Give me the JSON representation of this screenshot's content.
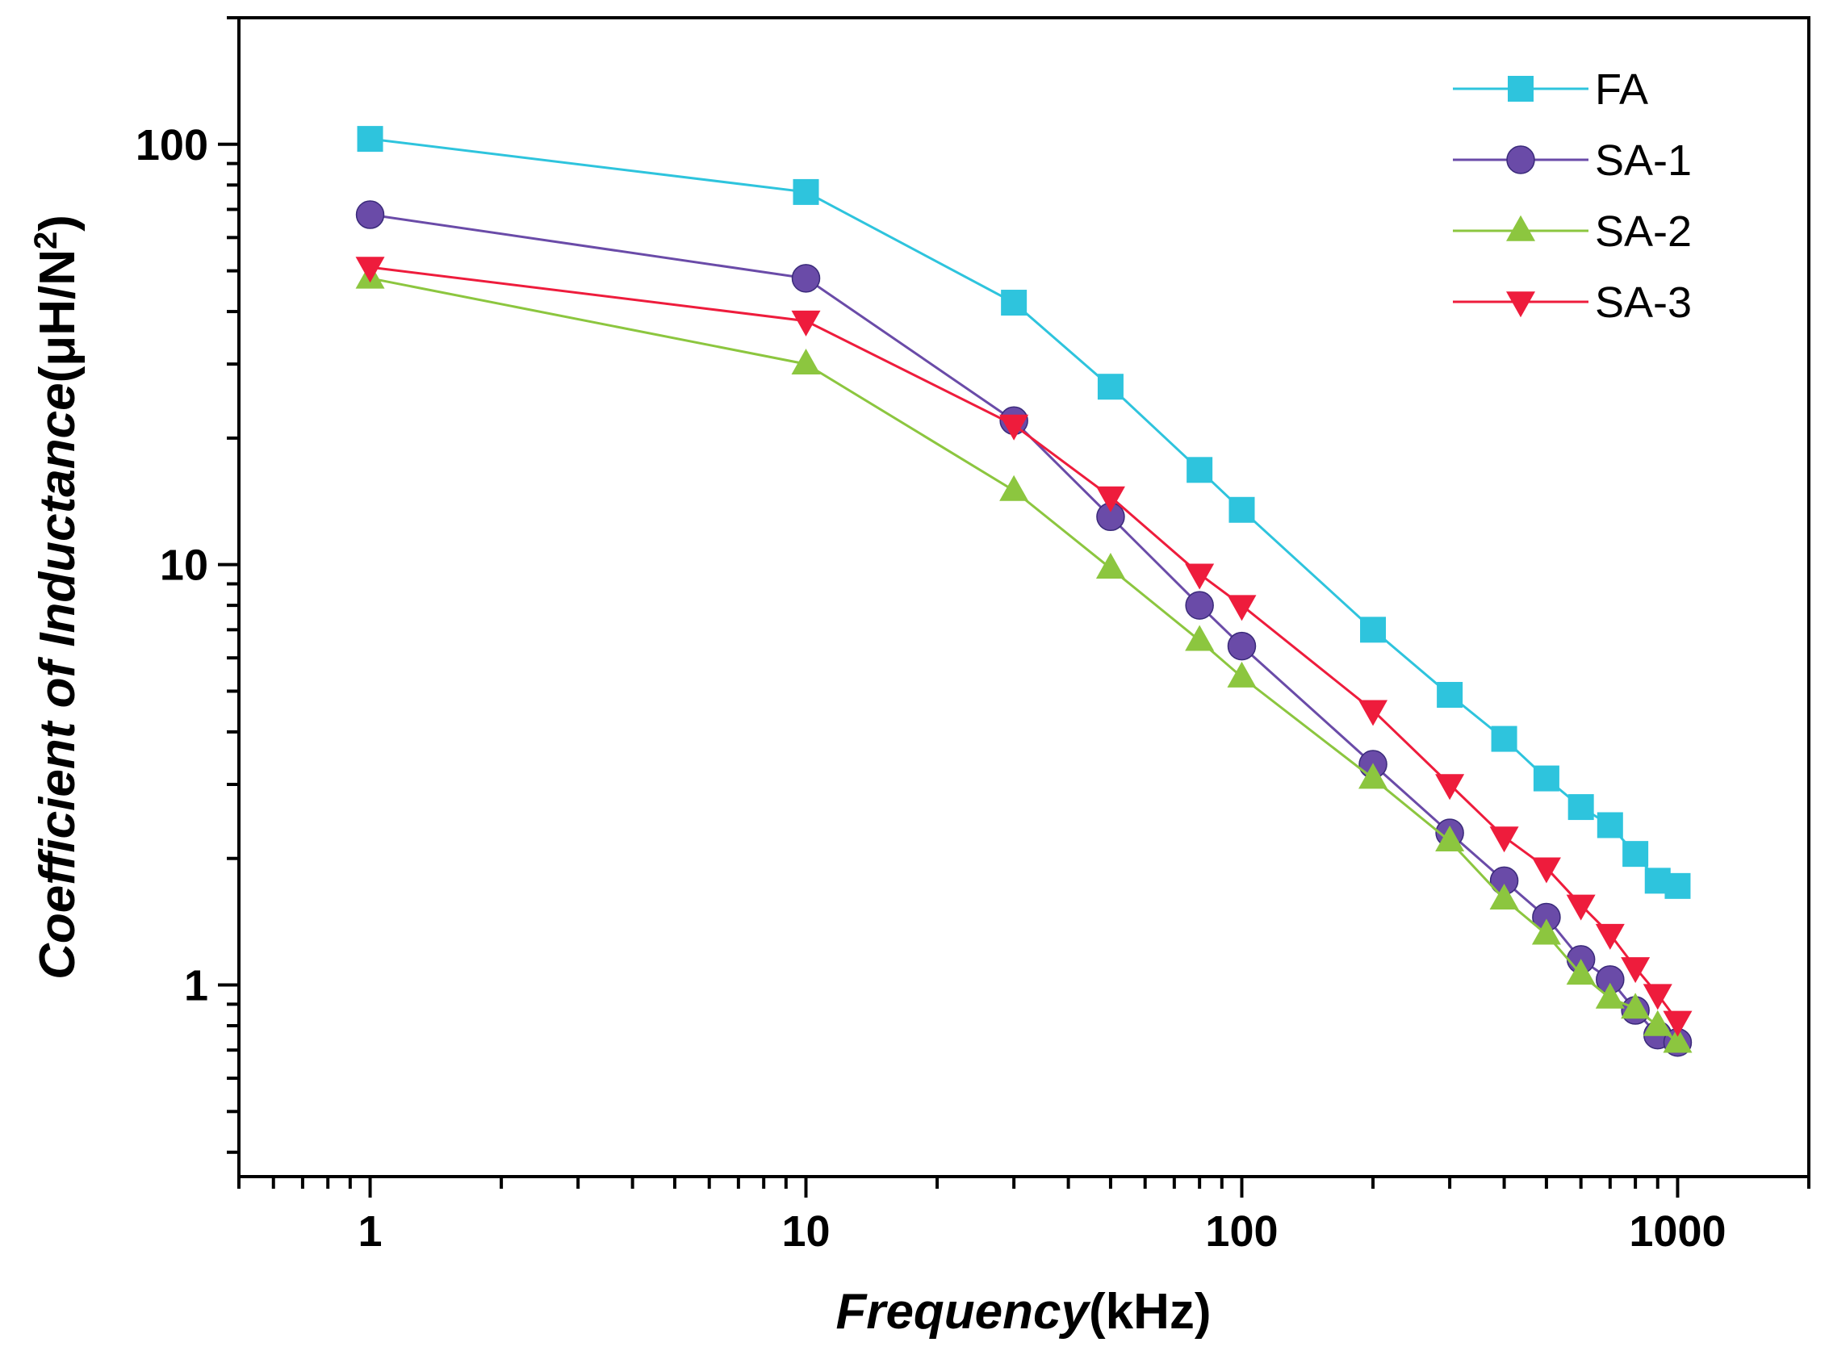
{
  "chart_data": {
    "type": "line",
    "title": "",
    "xlabel": "Frequency(kHz)",
    "xlabel_italic": "Frequency",
    "xlabel_unit": "(kHz)",
    "ylabel": "Coefficient of Inductance(μH/N2)",
    "ylabel_italic": "Coefficient of Inductance",
    "ylabel_unit_prefix": "(μH/N",
    "ylabel_unit_sup": "2",
    "ylabel_unit_suffix": ")",
    "x_scale": "log",
    "y_scale": "log",
    "xlim": [
      0.5,
      2000
    ],
    "ylim": [
      0.35,
      200
    ],
    "x_ticks": [
      1,
      10,
      100,
      1000
    ],
    "x_tick_labels": [
      "1",
      "10",
      "100",
      "1000"
    ],
    "y_ticks": [
      1,
      10,
      100
    ],
    "y_tick_labels": [
      "1",
      "10",
      "100"
    ],
    "grid": false,
    "legend_position": "top-right",
    "x": [
      1,
      10,
      30,
      50,
      80,
      100,
      200,
      300,
      400,
      500,
      600,
      700,
      800,
      900,
      1000
    ],
    "series": [
      {
        "name": "FA",
        "color": "#2ec4dd",
        "marker": "square",
        "x": [
          1,
          10,
          30,
          50,
          80,
          100,
          200,
          300,
          400,
          500,
          600,
          700,
          800,
          900,
          1000
        ],
        "values": [
          103,
          77,
          42,
          26.5,
          16.8,
          13.5,
          7.0,
          4.9,
          3.85,
          3.1,
          2.65,
          2.4,
          2.05,
          1.77,
          1.72
        ]
      },
      {
        "name": "SA-1",
        "color": "#6a4ba8",
        "marker": "circle",
        "x": [
          1,
          10,
          30,
          50,
          80,
          100,
          200,
          300,
          400,
          500,
          600,
          700,
          800,
          900,
          1000
        ],
        "values": [
          68,
          48,
          22,
          13,
          8.0,
          6.4,
          3.35,
          2.3,
          1.77,
          1.45,
          1.15,
          1.03,
          0.87,
          0.76,
          0.73
        ]
      },
      {
        "name": "SA-2",
        "color": "#8cc63f",
        "marker": "triangle-up",
        "x": [
          1,
          10,
          30,
          50,
          80,
          100,
          200,
          300,
          400,
          500,
          600,
          700,
          800,
          900,
          1000
        ],
        "values": [
          48,
          30,
          15,
          9.8,
          6.6,
          5.4,
          3.1,
          2.2,
          1.6,
          1.32,
          1.06,
          0.93,
          0.88,
          0.8,
          0.73
        ]
      },
      {
        "name": "SA-3",
        "color": "#ee1c3c",
        "marker": "triangle-down",
        "x": [
          1,
          10,
          30,
          50,
          80,
          100,
          200,
          300,
          400,
          500,
          600,
          700,
          800,
          900,
          1000
        ],
        "values": [
          51,
          38,
          21.5,
          14.5,
          9.5,
          8.0,
          4.5,
          3.0,
          2.25,
          1.9,
          1.55,
          1.32,
          1.1,
          0.95,
          0.82
        ]
      }
    ]
  }
}
